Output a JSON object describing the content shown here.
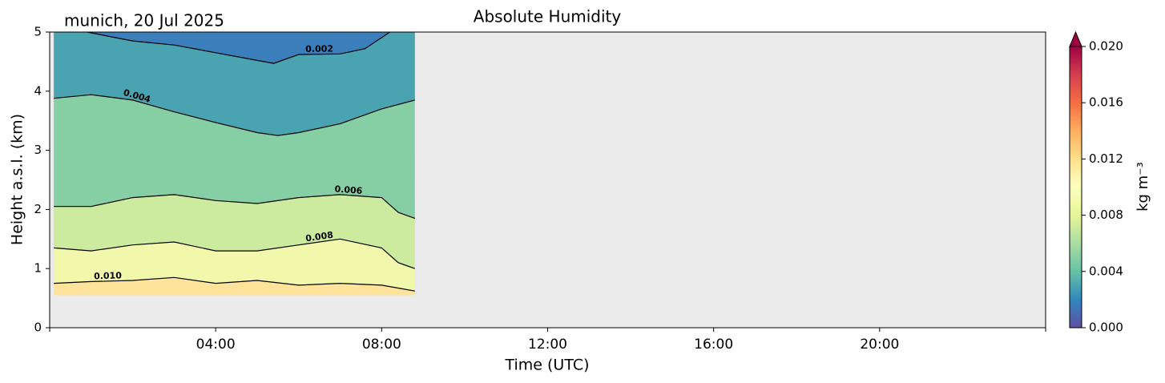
{
  "chart_data": {
    "type": "contour",
    "title": "Absolute Humidity",
    "annotation": "munich, 20 Jul 2025",
    "xlabel": "Time (UTC)",
    "ylabel": "Height a.s.l. (km)",
    "xlim": [
      0,
      24
    ],
    "xticks": [
      {
        "value": 4,
        "label": "04:00"
      },
      {
        "value": 8,
        "label": "08:00"
      },
      {
        "value": 12,
        "label": "12:00"
      },
      {
        "value": 16,
        "label": "16:00"
      },
      {
        "value": 20,
        "label": "20:00"
      }
    ],
    "ylim": [
      0,
      5
    ],
    "yticks": [
      0,
      1,
      2,
      3,
      4,
      5
    ],
    "background": "#ebebeb",
    "data_xlim": [
      0.1,
      8.8
    ],
    "data_ylim": [
      0.55,
      5
    ],
    "base_fill": "#fde49a",
    "series": [
      {
        "level": {
          "value": 0.01,
          "label": "0.010"
        },
        "color": "#000000",
        "fill": "#f2f8ab",
        "x": [
          0.1,
          1,
          2,
          3,
          4,
          5,
          6,
          7,
          8,
          8.8
        ],
        "values": [
          0.75,
          0.78,
          0.8,
          0.85,
          0.75,
          0.8,
          0.72,
          0.75,
          0.72,
          0.62
        ]
      },
      {
        "level": 0.008,
        "color": "#000000",
        "fill": "#cdeb9f",
        "x": [
          0.1,
          1,
          2,
          3,
          4,
          5,
          6,
          7,
          8,
          8.4,
          8.8
        ],
        "values": [
          1.35,
          1.3,
          1.4,
          1.45,
          1.3,
          1.3,
          1.4,
          1.5,
          1.35,
          1.1,
          1.0
        ]
      },
      {
        "level": 0.006,
        "color": "#000000",
        "fill": "#86cfa5",
        "x": [
          0.1,
          1,
          2,
          3,
          4,
          5,
          6,
          7,
          8,
          8.4,
          8.8
        ],
        "values": [
          2.05,
          2.05,
          2.2,
          2.25,
          2.15,
          2.1,
          2.2,
          2.25,
          2.2,
          1.95,
          1.85
        ]
      },
      {
        "level": 0.004,
        "color": "#000000",
        "fill": "#4aa3b1",
        "x": [
          0.1,
          1,
          2,
          3,
          4,
          5,
          5.5,
          6,
          7,
          8,
          8.8
        ],
        "values": [
          3.88,
          3.94,
          3.85,
          3.65,
          3.47,
          3.3,
          3.25,
          3.3,
          3.45,
          3.7,
          3.85
        ]
      },
      {
        "level": 0.002,
        "color": "#000000",
        "fill": "#3a7fbb",
        "x": [
          0.9,
          2,
          3,
          4,
          5,
          5.4,
          6,
          7,
          7.6,
          8.2
        ],
        "values": [
          5.0,
          4.85,
          4.78,
          4.65,
          4.52,
          4.47,
          4.62,
          4.63,
          4.72,
          5.0
        ]
      }
    ],
    "colorbar": {
      "label": "kg m⁻³",
      "lim": [
        0,
        0.02
      ],
      "extend": "max",
      "ticks": [
        {
          "value": 0,
          "label": "0.000"
        },
        0.004,
        0.008,
        0.012,
        0.016,
        {
          "value": 0.02,
          "label": "0.020"
        }
      ],
      "colors": [
        "#5e4fa2",
        "#3288bd",
        "#66c2a5",
        "#abdda4",
        "#e6f598",
        "#ffffbf",
        "#fee08b",
        "#fdae61",
        "#f46d43",
        "#d53e4f",
        "#9e0142"
      ]
    }
  }
}
